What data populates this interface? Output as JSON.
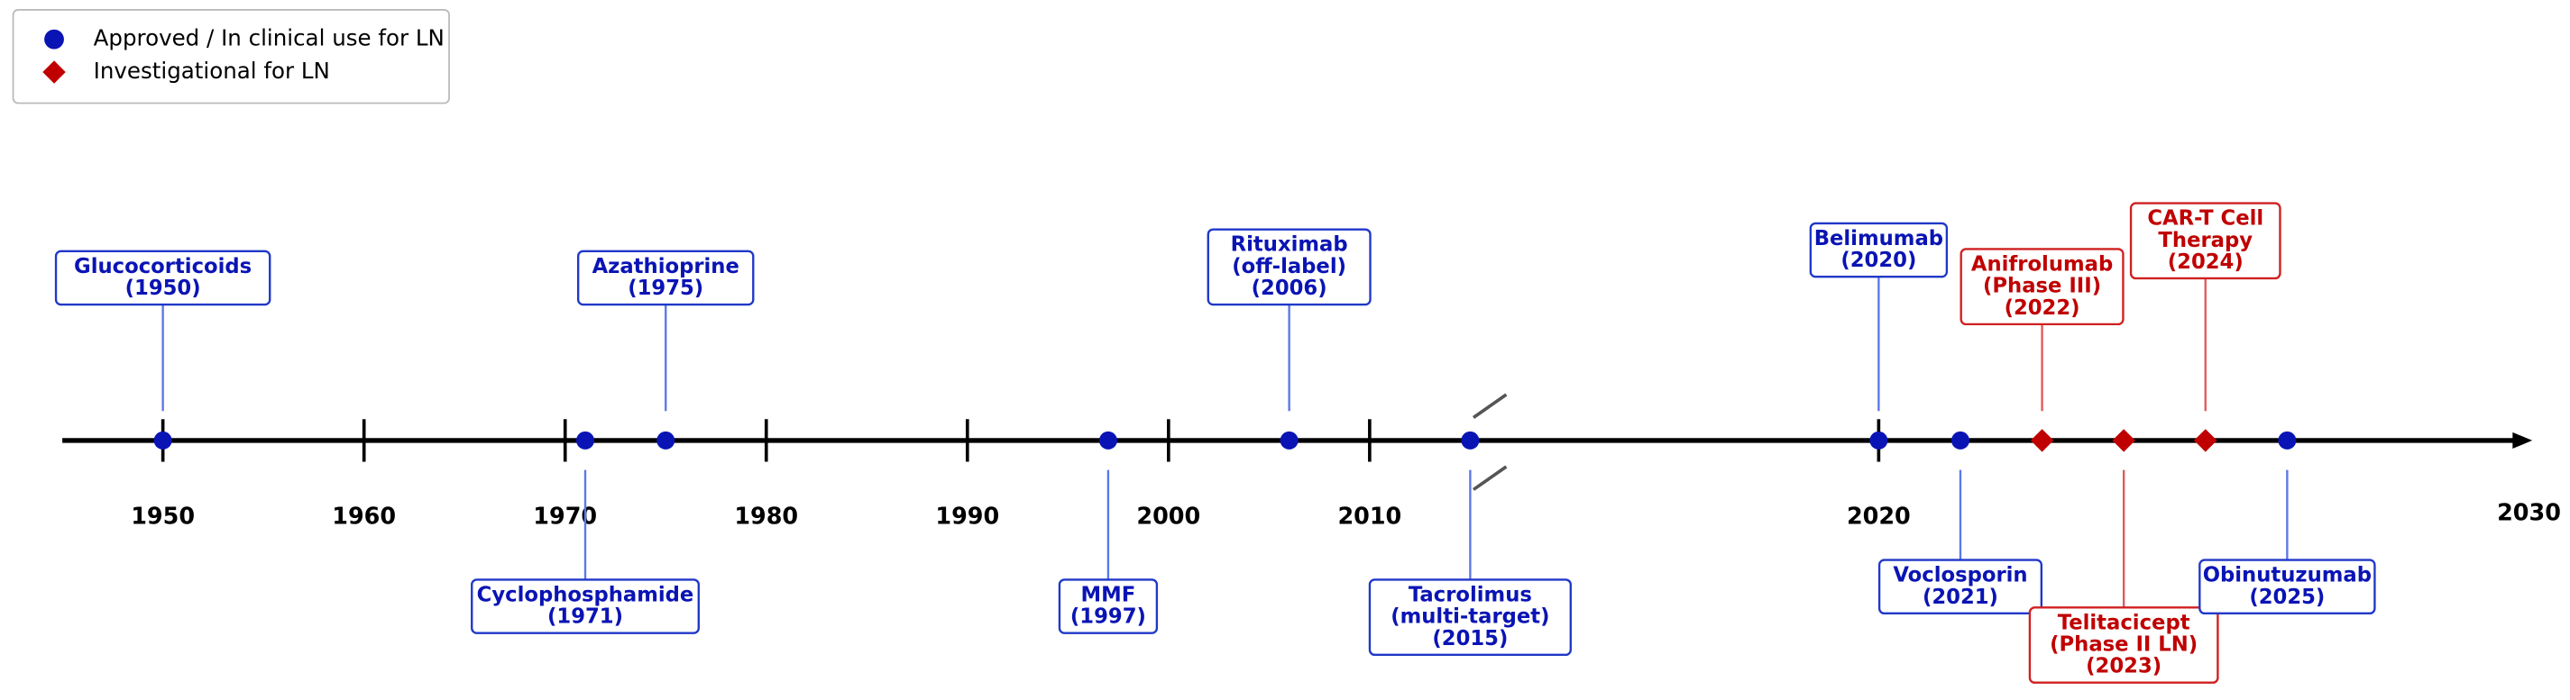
{
  "chart_data": {
    "type": "timeline",
    "xlim": [
      1945,
      2028
    ],
    "axis_break": 2015,
    "xticks": [
      1950,
      1960,
      1970,
      1980,
      1990,
      2000,
      2010,
      2020,
      2030
    ],
    "legend_position": "upper left",
    "statuses": [
      {
        "name": "Approved / In clinical use for LN",
        "color": "#0a14b4",
        "marker": "circle"
      },
      {
        "name": "Investigational for LN",
        "color": "#c00000",
        "marker": "diamond"
      }
    ],
    "events": [
      {
        "year": 1950,
        "status": 0,
        "side": "above",
        "lines": [
          "Glucocorticoids",
          "(1950)"
        ]
      },
      {
        "year": 1971,
        "status": 0,
        "side": "below",
        "lines": [
          "Cyclophosphamide",
          "(1971)"
        ]
      },
      {
        "year": 1975,
        "status": 0,
        "side": "above",
        "lines": [
          "Azathioprine",
          "(1975)"
        ]
      },
      {
        "year": 1997,
        "status": 0,
        "side": "below",
        "lines": [
          "MMF",
          "(1997)"
        ]
      },
      {
        "year": 2006,
        "status": 0,
        "side": "above",
        "lines": [
          "Rituximab",
          "(off-label)",
          "(2006)"
        ]
      },
      {
        "year": 2015,
        "status": 0,
        "side": "below",
        "lines": [
          "Tacrolimus",
          "(multi-target)",
          "(2015)"
        ]
      },
      {
        "year": 2020,
        "status": 0,
        "side": "above",
        "lines": [
          "Belimumab",
          "(2020)"
        ]
      },
      {
        "year": 2021,
        "status": 0,
        "side": "below",
        "lines": [
          "Voclosporin",
          "(2021)"
        ]
      },
      {
        "year": 2022,
        "status": 1,
        "side": "above",
        "lines": [
          "Anifrolumab",
          "(Phase III)",
          "(2022)"
        ]
      },
      {
        "year": 2023,
        "status": 1,
        "side": "below",
        "lines": [
          "Telitacicept",
          "(Phase II LN)",
          "(2023)"
        ]
      },
      {
        "year": 2024,
        "status": 1,
        "side": "above",
        "lines": [
          "CAR-T Cell",
          "Therapy",
          "(2024)"
        ]
      },
      {
        "year": 2025,
        "status": 0,
        "side": "below",
        "lines": [
          "Obinutuzumab",
          "(2025)"
        ]
      }
    ]
  }
}
